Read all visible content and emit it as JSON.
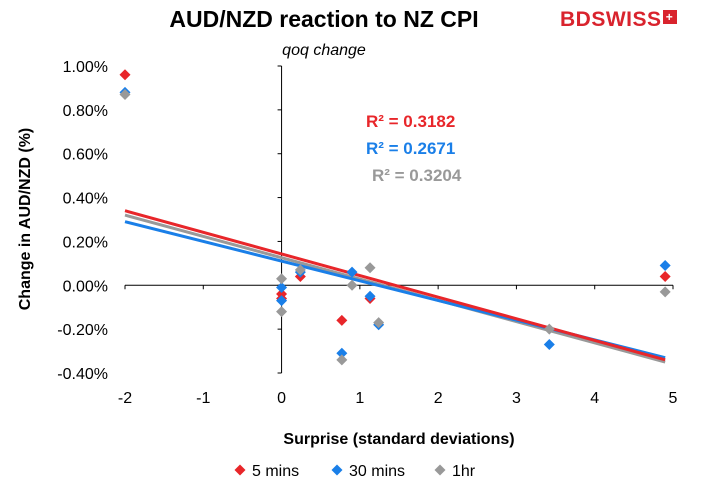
{
  "chart_data": {
    "type": "scatter",
    "title": "AUD/NZD reaction to NZ CPI",
    "subtitle": "qoq change",
    "xlabel": "Surprise (standard deviations)",
    "ylabel": "Change in AUD/NZD (%)",
    "xlim": [
      -2,
      5
    ],
    "ylim": [
      -0.4,
      1.0
    ],
    "x_ticks": [
      "-2",
      "-1",
      "0",
      "1",
      "2",
      "3",
      "4",
      "5"
    ],
    "y_ticks": [
      "-0.40%",
      "-0.20%",
      "0.00%",
      "0.20%",
      "0.40%",
      "0.60%",
      "0.80%",
      "1.00%"
    ],
    "grid": false,
    "legend_position": "bottom",
    "series": [
      {
        "name": "5 mins",
        "color": "#e8262a",
        "r2_label": "R² = 0.3182",
        "trend": [
          [
            -2,
            0.34
          ],
          [
            4.9,
            -0.34
          ]
        ],
        "points": [
          [
            -2,
            0.96
          ],
          [
            0,
            -0.04
          ],
          [
            0,
            -0.06
          ],
          [
            0.24,
            0.04
          ],
          [
            0.77,
            -0.16
          ],
          [
            1.13,
            -0.06
          ],
          [
            4.9,
            0.04
          ]
        ]
      },
      {
        "name": "30 mins",
        "color": "#1a7fe8",
        "r2_label": "R² = 0.2671",
        "trend": [
          [
            -2,
            0.29
          ],
          [
            4.9,
            -0.33
          ]
        ],
        "points": [
          [
            -2,
            0.88
          ],
          [
            0,
            -0.01
          ],
          [
            0,
            -0.07
          ],
          [
            0.24,
            0.06
          ],
          [
            0.77,
            -0.31
          ],
          [
            0.9,
            0.06
          ],
          [
            1.13,
            -0.05
          ],
          [
            1.24,
            -0.18
          ],
          [
            3.42,
            -0.27
          ],
          [
            4.9,
            0.09
          ]
        ]
      },
      {
        "name": "1hr",
        "color": "#999999",
        "r2_label": "R² = 0.3204",
        "trend": [
          [
            -2,
            0.32
          ],
          [
            4.9,
            -0.35
          ]
        ],
        "points": [
          [
            -2,
            0.87
          ],
          [
            0,
            0.03
          ],
          [
            0,
            -0.12
          ],
          [
            0.24,
            0.07
          ],
          [
            0.77,
            -0.34
          ],
          [
            0.9,
            0.0
          ],
          [
            1.13,
            0.08
          ],
          [
            1.24,
            -0.17
          ],
          [
            3.42,
            -0.2
          ],
          [
            4.9,
            -0.03
          ]
        ]
      }
    ]
  },
  "brand": {
    "name": "BDSWISS",
    "mark": "+"
  }
}
